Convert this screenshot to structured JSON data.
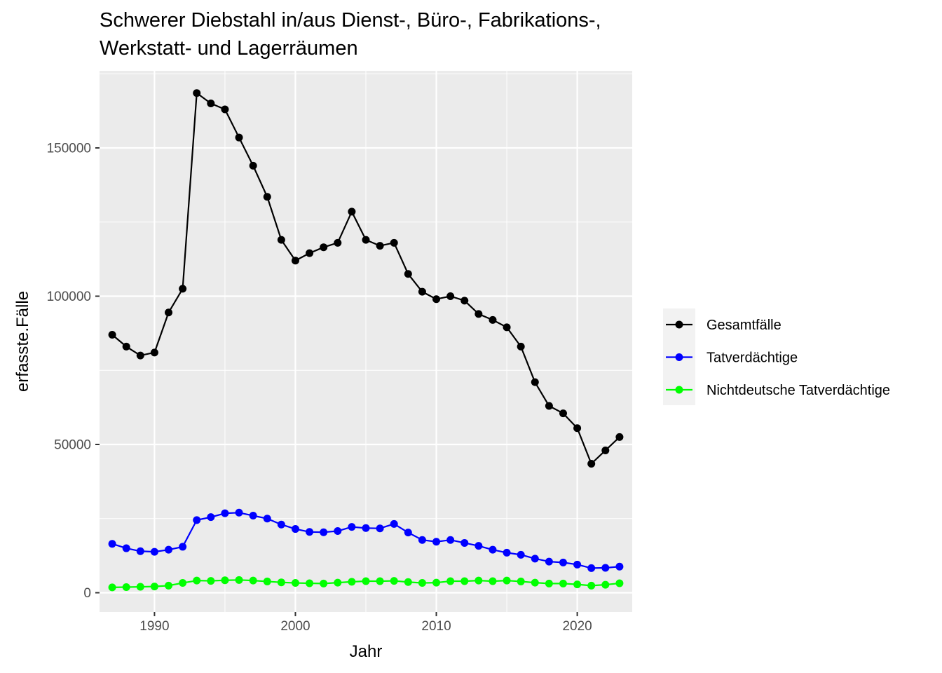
{
  "chart_data": {
    "type": "line",
    "title_lines": [
      "Schwerer Diebstahl in/aus Dienst-, Büro-, Fabrikations-,",
      "Werkstatt- und Lagerräumen"
    ],
    "xlabel": "Jahr",
    "ylabel": "erfasste.Fälle",
    "xlim": [
      1986.1,
      2023.9
    ],
    "ylim": [
      -6500,
      176000
    ],
    "x_ticks": [
      1990,
      2000,
      2010,
      2020
    ],
    "y_ticks": [
      0,
      50000,
      100000,
      150000
    ],
    "grid": true,
    "legend_position": "right",
    "x": [
      1987,
      1988,
      1989,
      1990,
      1991,
      1992,
      1993,
      1994,
      1995,
      1996,
      1997,
      1998,
      1999,
      2000,
      2001,
      2002,
      2003,
      2004,
      2005,
      2006,
      2007,
      2008,
      2009,
      2010,
      2011,
      2012,
      2013,
      2014,
      2015,
      2016,
      2017,
      2018,
      2019,
      2020,
      2021,
      2022,
      2023
    ],
    "series": [
      {
        "name": "Gesamtfälle",
        "color": "#000000",
        "values": [
          87000,
          83000,
          80000,
          81000,
          94500,
          102500,
          168500,
          165000,
          163000,
          153500,
          144000,
          133500,
          119000,
          112000,
          114500,
          116500,
          118000,
          128500,
          119000,
          117000,
          118000,
          107500,
          101500,
          99000,
          100000,
          98500,
          94000,
          92000,
          89500,
          83000,
          71000,
          63000,
          60500,
          55500,
          43500,
          48000,
          52500
        ]
      },
      {
        "name": "Tatverdächtige",
        "color": "#0000ff",
        "values": [
          16500,
          15000,
          14000,
          13800,
          14500,
          15500,
          24500,
          25500,
          26800,
          27000,
          26000,
          25000,
          23000,
          21500,
          20500,
          20400,
          20800,
          22200,
          21800,
          21700,
          23200,
          20300,
          17800,
          17200,
          17800,
          16800,
          15800,
          14500,
          13500,
          12800,
          11500,
          10500,
          10200,
          9500,
          8300,
          8400,
          8800
        ]
      },
      {
        "name": "Nichtdeutsche Tatverdächtige",
        "color": "#00ff00",
        "values": [
          1800,
          1900,
          2000,
          2100,
          2400,
          3300,
          4100,
          4000,
          4200,
          4300,
          4100,
          3800,
          3500,
          3300,
          3200,
          3100,
          3400,
          3700,
          3900,
          3900,
          4000,
          3600,
          3300,
          3400,
          3900,
          3900,
          4100,
          3900,
          4100,
          3800,
          3400,
          3100,
          3100,
          2800,
          2400,
          2700,
          3200
        ]
      }
    ]
  }
}
